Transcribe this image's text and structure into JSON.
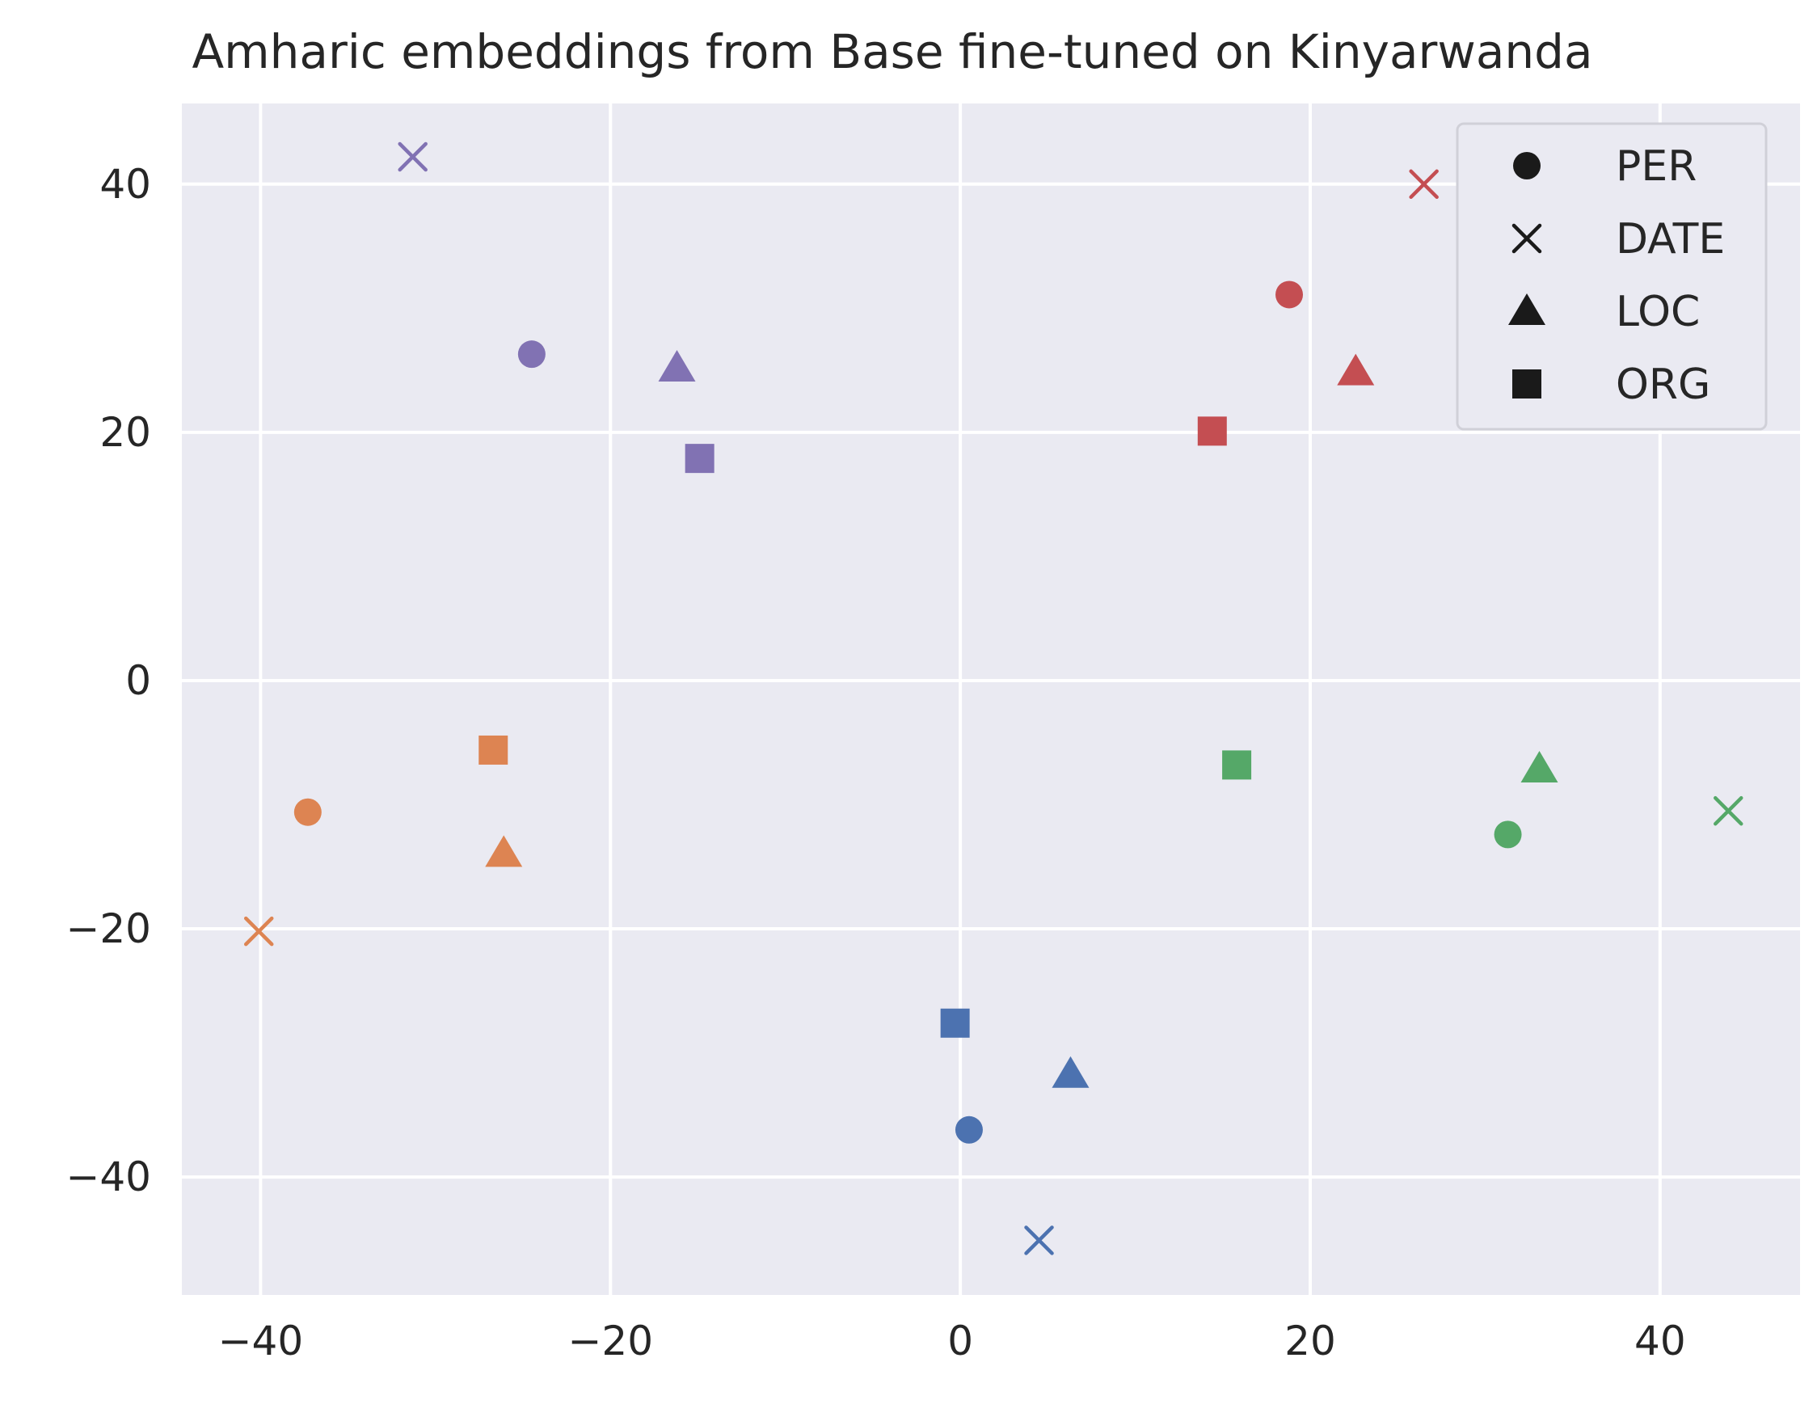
{
  "chart_data": {
    "type": "scatter",
    "title": "Amharic embeddings from Base fine-tuned on Kinyarwanda",
    "xlabel": "",
    "ylabel": "",
    "xlim": [
      -44.5,
      48
    ],
    "ylim": [
      -49.5,
      46.5
    ],
    "x_ticks": [
      -40,
      -20,
      0,
      20,
      40
    ],
    "y_ticks": [
      40,
      20,
      0,
      -20,
      -40
    ],
    "grid": true,
    "legend_position": "top-right",
    "marker_legend": [
      {
        "label": "PER",
        "marker": "circle"
      },
      {
        "label": "DATE",
        "marker": "x"
      },
      {
        "label": "LOC",
        "marker": "triangle"
      },
      {
        "label": "ORG",
        "marker": "square"
      }
    ],
    "colors": {
      "blue": "#4c72b0",
      "orange": "#dd8452",
      "green": "#55a868",
      "red": "#c44e52",
      "purple": "#8172b3"
    },
    "points": [
      {
        "x": 0.5,
        "y": -36.2,
        "marker": "circle",
        "color": "blue"
      },
      {
        "x": 4.5,
        "y": -45.1,
        "marker": "x",
        "color": "blue"
      },
      {
        "x": 6.3,
        "y": -31.7,
        "marker": "triangle",
        "color": "blue"
      },
      {
        "x": -0.3,
        "y": -27.6,
        "marker": "square",
        "color": "blue"
      },
      {
        "x": -37.3,
        "y": -10.6,
        "marker": "circle",
        "color": "orange"
      },
      {
        "x": -40.1,
        "y": -20.2,
        "marker": "x",
        "color": "orange"
      },
      {
        "x": -26.1,
        "y": -13.9,
        "marker": "triangle",
        "color": "orange"
      },
      {
        "x": -26.7,
        "y": -5.6,
        "marker": "square",
        "color": "orange"
      },
      {
        "x": 31.3,
        "y": -12.4,
        "marker": "circle",
        "color": "green"
      },
      {
        "x": 43.9,
        "y": -10.5,
        "marker": "x",
        "color": "green"
      },
      {
        "x": 33.1,
        "y": -7.1,
        "marker": "triangle",
        "color": "green"
      },
      {
        "x": 15.8,
        "y": -6.8,
        "marker": "square",
        "color": "green"
      },
      {
        "x": 18.8,
        "y": 31.1,
        "marker": "circle",
        "color": "red"
      },
      {
        "x": 26.5,
        "y": 40.0,
        "marker": "x",
        "color": "red"
      },
      {
        "x": 22.6,
        "y": 24.9,
        "marker": "triangle",
        "color": "red"
      },
      {
        "x": 14.4,
        "y": 20.1,
        "marker": "square",
        "color": "red"
      },
      {
        "x": -24.5,
        "y": 26.3,
        "marker": "circle",
        "color": "purple"
      },
      {
        "x": -31.3,
        "y": 42.2,
        "marker": "x",
        "color": "purple"
      },
      {
        "x": -16.2,
        "y": 25.2,
        "marker": "triangle",
        "color": "purple"
      },
      {
        "x": -14.9,
        "y": 17.9,
        "marker": "square",
        "color": "purple"
      }
    ]
  }
}
